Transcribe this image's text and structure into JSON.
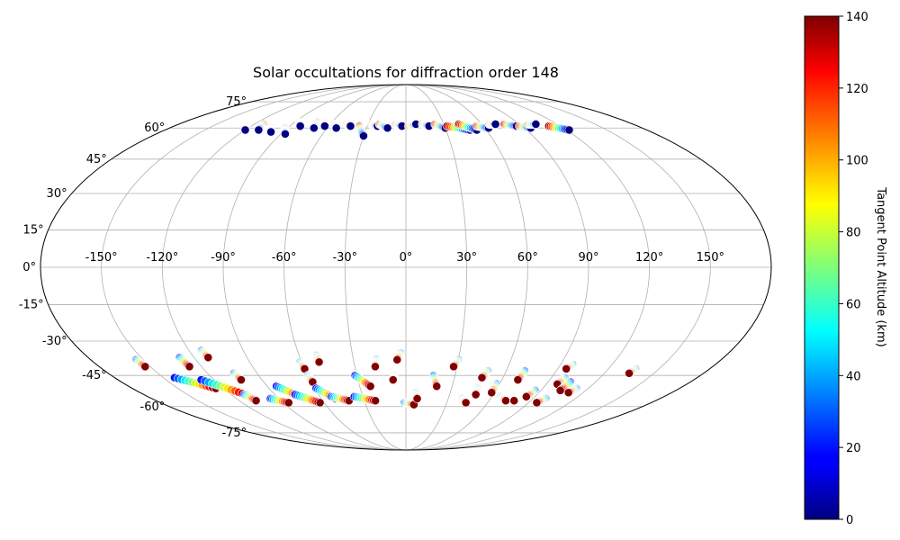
{
  "chart_data": {
    "type": "scatter",
    "projection": "mollweide",
    "title": "Solar occultations for diffraction order 148",
    "lon_ticks": [
      -150,
      -120,
      -90,
      -60,
      -30,
      0,
      30,
      60,
      90,
      120,
      150
    ],
    "lon_tick_labels": [
      "-150°",
      "-120°",
      "-90°",
      "-60°",
      "-30°",
      "0°",
      "30°",
      "60°",
      "90°",
      "120°",
      "150°"
    ],
    "lat_ticks": [
      75,
      60,
      45,
      30,
      15,
      0,
      -15,
      -30,
      -45,
      -60,
      -75
    ],
    "lat_tick_labels": [
      "75°",
      "60°",
      "45°",
      "30°",
      "15°",
      "0°",
      "-15°",
      "-30°",
      "-45°",
      "-60°",
      "-75°"
    ],
    "grid": true,
    "colorbar": {
      "label": "Tangent Point Altitude (km)",
      "range": [
        0,
        140
      ],
      "ticks": [
        0,
        20,
        40,
        60,
        80,
        100,
        120,
        140
      ],
      "tick_labels": [
        "0",
        "20",
        "40",
        "60",
        "80",
        "100",
        "120",
        "140"
      ],
      "colormap": "jet"
    },
    "tracks": [
      {
        "lon": [
          -124,
          -120
        ],
        "lat": [
          61,
          59
        ],
        "alt": [
          140,
          0
        ]
      },
      {
        "lon": [
          -113,
          -110
        ],
        "lat": [
          62,
          59
        ],
        "alt": [
          140,
          0
        ]
      },
      {
        "lon": [
          -103,
          -99
        ],
        "lat": [
          60,
          58
        ],
        "alt": [
          140,
          0
        ]
      },
      {
        "lon": [
          -92,
          -87
        ],
        "lat": [
          60,
          57
        ],
        "alt": [
          140,
          0
        ]
      },
      {
        "lon": [
          -86,
          -82
        ],
        "lat": [
          63,
          61
        ],
        "alt": [
          140,
          0
        ]
      },
      {
        "lon": [
          -72,
          -70
        ],
        "lat": [
          63,
          60
        ],
        "alt": [
          140,
          0
        ]
      },
      {
        "lon": [
          -67,
          -63
        ],
        "lat": [
          63,
          61
        ],
        "alt": [
          140,
          0
        ]
      },
      {
        "lon": [
          -57,
          -53
        ],
        "lat": [
          62,
          60
        ],
        "alt": [
          140,
          0
        ]
      },
      {
        "lon": [
          -47,
          -43
        ],
        "lat": [
          62,
          61
        ],
        "alt": [
          140,
          0
        ]
      },
      {
        "lon": [
          -36,
          -30
        ],
        "lat": [
          61,
          56
        ],
        "alt": [
          140,
          0
        ]
      },
      {
        "lon": [
          -27,
          -22
        ],
        "lat": [
          62,
          61
        ],
        "alt": [
          140,
          0
        ]
      },
      {
        "lon": [
          -21,
          -14
        ],
        "lat": [
          62,
          60
        ],
        "alt": [
          140,
          0
        ]
      },
      {
        "lon": [
          -8,
          -3
        ],
        "lat": [
          62,
          61
        ],
        "alt": [
          140,
          0
        ]
      },
      {
        "lon": [
          2,
          8
        ],
        "lat": [
          61,
          62
        ],
        "alt": [
          140,
          0
        ]
      },
      {
        "lon": [
          13,
          18
        ],
        "lat": [
          62,
          61
        ],
        "alt": [
          140,
          0
        ]
      },
      {
        "lon": [
          23,
          30
        ],
        "lat": [
          62,
          60
        ],
        "alt": [
          140,
          0
        ]
      },
      {
        "lon": [
          32,
          48
        ],
        "lat": [
          61,
          59
        ],
        "alt": [
          140,
          0
        ]
      },
      {
        "lon": [
          42,
          53
        ],
        "lat": [
          62,
          59
        ],
        "alt": [
          140,
          0
        ]
      },
      {
        "lon": [
          55,
          63
        ],
        "lat": [
          61,
          60
        ],
        "alt": [
          140,
          0
        ]
      },
      {
        "lon": [
          66,
          71
        ],
        "lat": [
          62,
          62
        ],
        "alt": [
          140,
          0
        ]
      },
      {
        "lon": [
          78,
          86
        ],
        "lat": [
          62,
          61
        ],
        "alt": [
          140,
          0
        ]
      },
      {
        "lon": [
          88,
          95
        ],
        "lat": [
          61,
          60
        ],
        "alt": [
          140,
          0
        ]
      },
      {
        "lon": [
          97,
          103
        ],
        "lat": [
          62,
          62
        ],
        "alt": [
          140,
          0
        ]
      },
      {
        "lon": [
          111,
          122
        ],
        "lat": [
          61,
          59
        ],
        "alt": [
          140,
          0
        ]
      },
      {
        "lon": [
          -154,
          -153
        ],
        "lat": [
          -38,
          -41
        ],
        "alt": [
          20,
          140
        ]
      },
      {
        "lon": [
          -143,
          -125
        ],
        "lat": [
          -46,
          -51
        ],
        "alt": [
          20,
          140
        ]
      },
      {
        "lon": [
          -128,
          -110
        ],
        "lat": [
          -47,
          -54
        ],
        "alt": [
          20,
          140
        ]
      },
      {
        "lon": [
          -128,
          -127
        ],
        "lat": [
          -37,
          -41
        ],
        "alt": [
          20,
          140
        ]
      },
      {
        "lon": [
          -113,
          -112
        ],
        "lat": [
          -34,
          -37
        ],
        "alt": [
          20,
          140
        ]
      },
      {
        "lon": [
          -104,
          -103
        ],
        "lat": [
          -44,
          -47
        ],
        "alt": [
          20,
          140
        ]
      },
      {
        "lon": [
          -111,
          -108
        ],
        "lat": [
          -54,
          -57
        ],
        "alt": [
          20,
          140
        ]
      },
      {
        "lon": [
          -96,
          -86
        ],
        "lat": [
          -56,
          -58
        ],
        "alt": [
          20,
          140
        ]
      },
      {
        "lon": [
          -84,
          -74
        ],
        "lat": [
          -50,
          -55
        ],
        "alt": [
          20,
          140
        ]
      },
      {
        "lon": [
          -76,
          -63
        ],
        "lat": [
          -54,
          -58
        ],
        "alt": [
          20,
          140
        ]
      },
      {
        "lon": [
          -61,
          -60
        ],
        "lat": [
          -39,
          -42
        ],
        "alt": [
          20,
          140
        ]
      },
      {
        "lon": [
          -60,
          -59
        ],
        "lat": [
          -45,
          -48
        ],
        "alt": [
          20,
          140
        ]
      },
      {
        "lon": [
          -59,
          -50
        ],
        "lat": [
          -51,
          -56
        ],
        "alt": [
          20,
          140
        ]
      },
      {
        "lon": [
          -52,
          -41
        ],
        "lat": [
          -55,
          -57
        ],
        "alt": [
          20,
          140
        ]
      },
      {
        "lon": [
          -50,
          -50
        ],
        "lat": [
          -36,
          -39
        ],
        "alt": [
          20,
          140
        ]
      },
      {
        "lon": [
          -31,
          -23
        ],
        "lat": [
          -45,
          -50
        ],
        "alt": [
          20,
          140
        ]
      },
      {
        "lon": [
          -36,
          -22
        ],
        "lat": [
          -55,
          -57
        ],
        "alt": [
          20,
          140
        ]
      },
      {
        "lon": [
          -17,
          -18
        ],
        "lat": [
          -38,
          -41
        ],
        "alt": [
          20,
          140
        ]
      },
      {
        "lon": [
          -3,
          -5
        ],
        "lat": [
          -35,
          -38
        ],
        "alt": [
          20,
          140
        ]
      },
      {
        "lon": [
          -7,
          -8
        ],
        "lat": [
          -45,
          -47
        ],
        "alt": [
          20,
          140
        ]
      },
      {
        "lon": [
          -1,
          6
        ],
        "lat": [
          -58,
          -59
        ],
        "alt": [
          20,
          140
        ]
      },
      {
        "lon": [
          7,
          8
        ],
        "lat": [
          -53,
          -56
        ],
        "alt": [
          20,
          140
        ]
      },
      {
        "lon": [
          17,
          20
        ],
        "lat": [
          -45,
          -50
        ],
        "alt": [
          20,
          140
        ]
      },
      {
        "lon": [
          30,
          28
        ],
        "lat": [
          -38,
          -41
        ],
        "alt": [
          20,
          140
        ]
      },
      {
        "lon": [
          40,
          44
        ],
        "lat": [
          -56,
          -58
        ],
        "alt": [
          20,
          140
        ]
      },
      {
        "lon": [
          47,
          48
        ],
        "lat": [
          -51,
          -54
        ],
        "alt": [
          20,
          140
        ]
      },
      {
        "lon": [
          49,
          47
        ],
        "lat": [
          -43,
          -46
        ],
        "alt": [
          20,
          140
        ]
      },
      {
        "lon": [
          58,
          58
        ],
        "lat": [
          -49,
          -53
        ],
        "alt": [
          20,
          140
        ]
      },
      {
        "lon": [
          71,
          70
        ],
        "lat": [
          -43,
          -47
        ],
        "alt": [
          20,
          140
        ]
      },
      {
        "lon": [
          66,
          72
        ],
        "lat": [
          -55,
          -57
        ],
        "alt": [
          20,
          140
        ]
      },
      {
        "lon": [
          75,
          78
        ],
        "lat": [
          -55,
          -57
        ],
        "alt": [
          20,
          140
        ]
      },
      {
        "lon": [
          86,
          84
        ],
        "lat": [
          -52,
          -55
        ],
        "alt": [
          20,
          140
        ]
      },
      {
        "lon": [
          97,
          95
        ],
        "lat": [
          -40,
          -42
        ],
        "alt": [
          20,
          140
        ]
      },
      {
        "lon": [
          98,
          97
        ],
        "lat": [
          -46,
          -49
        ],
        "alt": [
          20,
          140
        ]
      },
      {
        "lon": [
          104,
          103
        ],
        "lat": [
          -48,
          -52
        ],
        "alt": [
          20,
          140
        ]
      },
      {
        "lon": [
          112,
          110
        ],
        "lat": [
          -51,
          -53
        ],
        "alt": [
          20,
          140
        ]
      },
      {
        "lon": [
          99,
          96
        ],
        "lat": [
          -56,
          -58
        ],
        "alt": [
          20,
          140
        ]
      },
      {
        "lon": [
          136,
          135
        ],
        "lat": [
          -42,
          -44
        ],
        "alt": [
          20,
          140
        ]
      }
    ]
  }
}
